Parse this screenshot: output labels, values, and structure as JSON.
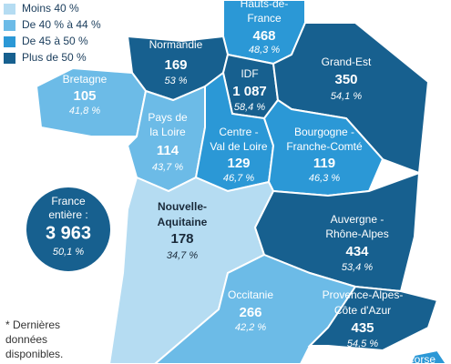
{
  "legend": {
    "items": [
      {
        "label": "Moins 40 %",
        "color": "#b5dcf2"
      },
      {
        "label": "De 40 % à 44 %",
        "color": "#6cbbe7"
      },
      {
        "label": "De 45 à 50 %",
        "color": "#2b98d6"
      },
      {
        "label": "Plus de 50 %",
        "color": "#17608f"
      }
    ]
  },
  "regions": [
    {
      "name": [
        "Hauts-de-",
        "France"
      ],
      "count": "468",
      "share": "48,3 %",
      "color": "#2b98d6"
    },
    {
      "name": [
        "Normandie"
      ],
      "count": "169",
      "share": "53 %",
      "color": "#17608f"
    },
    {
      "name": [
        "IDF"
      ],
      "count": "1 087",
      "share": "58,4 %",
      "color": "#17608f"
    },
    {
      "name": [
        "Grand-Est"
      ],
      "count": "350",
      "share": "54,1 %",
      "color": "#17608f"
    },
    {
      "name": [
        "Bretagne"
      ],
      "count": "105",
      "share": "41,8 %",
      "color": "#6cbbe7"
    },
    {
      "name": [
        "Pays de",
        "la Loire"
      ],
      "count": "114",
      "share": "43,7 %",
      "color": "#6cbbe7"
    },
    {
      "name": [
        "Centre -",
        "Val de Loire"
      ],
      "count": "129",
      "share": "46,7 %",
      "color": "#2b98d6"
    },
    {
      "name": [
        "Bourgogne -",
        "Franche-Comté"
      ],
      "count": "119",
      "share": "46,3 %",
      "color": "#2b98d6"
    },
    {
      "name": [
        "Nouvelle-",
        "Aquitaine"
      ],
      "count": "178",
      "share": "34,7 %",
      "color": "#b5dcf2"
    },
    {
      "name": [
        "Auvergne -",
        "Rhône-Alpes"
      ],
      "count": "434",
      "share": "53,4 %",
      "color": "#17608f"
    },
    {
      "name": [
        "Occitanie"
      ],
      "count": "266",
      "share": "42,2 %",
      "color": "#6cbbe7"
    },
    {
      "name": [
        "Provence-Alpes-",
        "Côte d'Azur"
      ],
      "count": "435",
      "share": "54,5 %",
      "color": "#17608f"
    },
    {
      "name": [
        "Corse"
      ],
      "color": "#2b98d6"
    }
  ],
  "total": {
    "name": [
      "France",
      "entière :"
    ],
    "count": "3 963",
    "share": "50,1 %",
    "color": "#17608f"
  },
  "footnote": [
    "* Dernières",
    "données",
    "disponibles."
  ]
}
